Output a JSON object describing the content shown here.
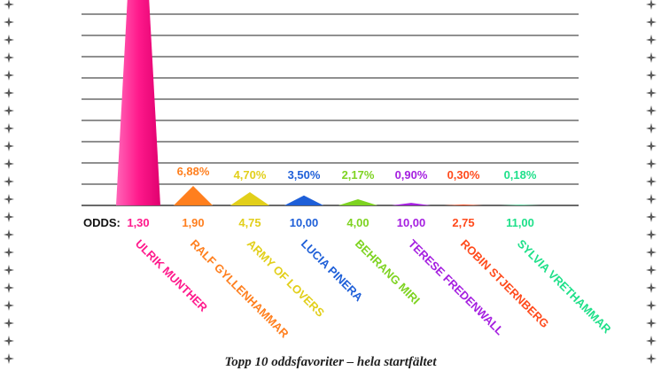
{
  "caption": "Topp 10 oddsfavoriter – hela startfältet",
  "odds_label": "ODDS:",
  "chart_data": {
    "type": "bar",
    "categories": [
      "ULRIK MUNTHER",
      "RALF GYLLENHAMMAR",
      "ARMY OF LOVERS",
      "LUCIA PINERA",
      "BEHRANG MIRI",
      "TERESE FREDENWALL",
      "ROBIN STJERNBERG",
      "SYLVIA VRETHAMMAR"
    ],
    "values": [
      null,
      6.88,
      4.7,
      3.5,
      2.17,
      0.9,
      0.3,
      0.18
    ],
    "value_labels": [
      "",
      "6,88%",
      "4,70%",
      "3,50%",
      "2,17%",
      "0,90%",
      "0,30%",
      "0,18%"
    ],
    "odds": [
      "1,30",
      "1,90",
      "4,75",
      "10,00",
      "4,00",
      "10,00",
      "2,75",
      "11,00"
    ],
    "colors": [
      "#ff1a8c",
      "#ff7f1e",
      "#e2cf1a",
      "#1e5fd8",
      "#7ed321",
      "#a51fe0",
      "#ff4a1c",
      "#1fe08a"
    ],
    "grid": true,
    "title": "",
    "xlabel": "",
    "ylabel": ""
  }
}
